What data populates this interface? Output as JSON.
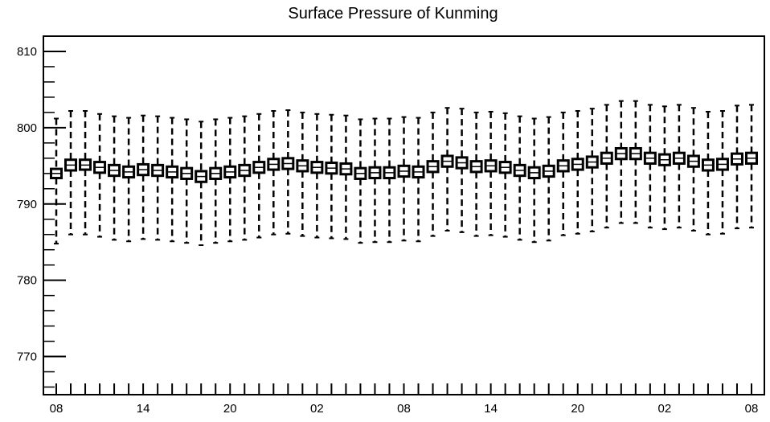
{
  "chart_data": {
    "type": "box",
    "title": "Surface Pressure of Kunming",
    "xlabel": "",
    "ylabel": "",
    "ylim": [
      765,
      812
    ],
    "yticks": [
      770,
      780,
      790,
      800,
      810
    ],
    "x_tick_labels": [
      "08",
      "14",
      "20",
      "02",
      "08",
      "14",
      "20",
      "02",
      "08"
    ],
    "x_tick_label_positions": [
      0,
      6,
      12,
      18,
      24,
      30,
      36,
      42,
      48
    ],
    "categories_count": 49,
    "grid": false,
    "legend": "none",
    "series": [
      {
        "medians": [
          794.0,
          795.1,
          795.1,
          794.8,
          794.4,
          794.2,
          794.5,
          794.4,
          794.2,
          794.0,
          793.6,
          794.0,
          794.2,
          794.4,
          794.8,
          795.2,
          795.3,
          795.0,
          794.8,
          794.7,
          794.6,
          794.0,
          794.1,
          794.1,
          794.3,
          794.2,
          794.9,
          795.6,
          795.4,
          794.9,
          795.0,
          794.8,
          794.4,
          794.1,
          794.3,
          795.0,
          795.2,
          795.5,
          796.0,
          796.6,
          796.6,
          796.0,
          795.8,
          796.0,
          795.6,
          795.1,
          795.2,
          795.9,
          796.0
        ],
        "q1": [
          793.4,
          794.4,
          794.5,
          794.1,
          793.7,
          793.5,
          793.8,
          793.7,
          793.5,
          793.3,
          792.9,
          793.3,
          793.5,
          793.7,
          794.1,
          794.5,
          794.6,
          794.3,
          794.1,
          794.0,
          793.9,
          793.3,
          793.4,
          793.4,
          793.6,
          793.5,
          794.2,
          794.9,
          794.7,
          794.2,
          794.3,
          794.1,
          793.7,
          793.4,
          793.6,
          794.3,
          794.5,
          794.8,
          795.3,
          795.9,
          795.9,
          795.3,
          795.1,
          795.3,
          794.9,
          794.4,
          794.5,
          795.2,
          795.3
        ],
        "q3": [
          794.6,
          795.8,
          795.8,
          795.5,
          795.1,
          794.9,
          795.2,
          795.1,
          794.9,
          794.7,
          794.3,
          794.7,
          794.9,
          795.1,
          795.5,
          795.9,
          796.0,
          795.7,
          795.5,
          795.4,
          795.3,
          794.7,
          794.8,
          794.8,
          795.0,
          794.9,
          795.6,
          796.3,
          796.1,
          795.6,
          795.7,
          795.5,
          795.1,
          794.8,
          795.0,
          795.7,
          795.9,
          796.2,
          796.7,
          797.3,
          797.3,
          796.7,
          796.5,
          796.7,
          796.3,
          795.8,
          795.9,
          796.6,
          796.7
        ],
        "whisker_low": [
          784.8,
          786.0,
          786.0,
          785.7,
          785.3,
          785.1,
          785.4,
          785.3,
          785.1,
          784.9,
          784.6,
          784.9,
          785.1,
          785.3,
          785.6,
          786.0,
          786.1,
          785.8,
          785.6,
          785.5,
          785.4,
          784.9,
          785.0,
          785.0,
          785.2,
          785.1,
          785.8,
          786.5,
          786.3,
          785.8,
          785.9,
          785.7,
          785.3,
          785.0,
          785.2,
          785.9,
          786.1,
          786.4,
          786.9,
          787.5,
          787.5,
          786.9,
          786.7,
          786.9,
          786.5,
          786.0,
          786.1,
          786.8,
          786.9
        ],
        "whisker_high": [
          801.2,
          802.2,
          802.2,
          801.8,
          801.5,
          801.3,
          801.6,
          801.5,
          801.3,
          801.1,
          800.8,
          801.1,
          801.3,
          801.5,
          801.8,
          802.2,
          802.3,
          802.0,
          801.8,
          801.7,
          801.6,
          801.1,
          801.2,
          801.2,
          801.4,
          801.3,
          802.0,
          802.6,
          802.5,
          802.0,
          802.1,
          801.9,
          801.5,
          801.2,
          801.4,
          802.0,
          802.2,
          802.5,
          803.0,
          803.5,
          803.5,
          803.0,
          802.8,
          803.0,
          802.6,
          802.1,
          802.2,
          802.9,
          803.0
        ]
      }
    ]
  }
}
